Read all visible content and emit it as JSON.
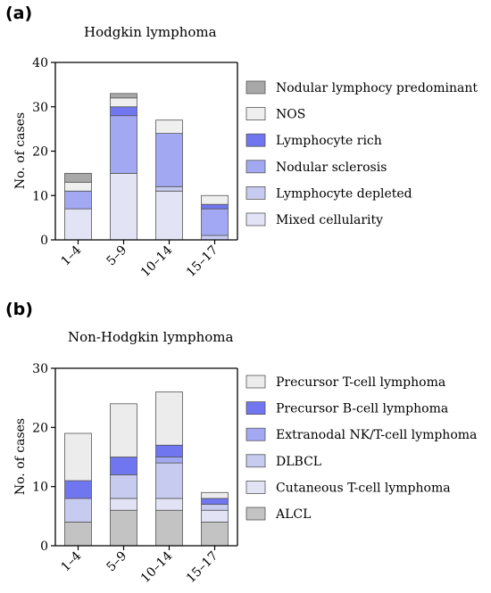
{
  "chart_data": [
    {
      "panel": "(a)",
      "type": "bar",
      "stacked": true,
      "title": "Hodgkin lymphoma",
      "xlabel": "",
      "ylabel": "No. of cases",
      "categories": [
        "1–4",
        "5–9",
        "10–14",
        "15–17"
      ],
      "ylim": [
        0,
        40
      ],
      "yticks": [
        0,
        10,
        20,
        30,
        40
      ],
      "grid": false,
      "legend_position": "right",
      "series": [
        {
          "name": "Mixed cellularity",
          "color": "#e2e4f6",
          "values": [
            7,
            15,
            11,
            0
          ]
        },
        {
          "name": "Lymphocyte depleted",
          "color": "#c7cbf0",
          "values": [
            0,
            0,
            1,
            1
          ]
        },
        {
          "name": "Nodular sclerosis",
          "color": "#a2a8f2",
          "values": [
            4,
            13,
            12,
            6
          ]
        },
        {
          "name": "Lymphocyte rich",
          "color": "#7076ef",
          "values": [
            0,
            2,
            0,
            1
          ]
        },
        {
          "name": "NOS",
          "color": "#efefef",
          "values": [
            2,
            2,
            3,
            2
          ]
        },
        {
          "name": "Nodular lymphocy predominant",
          "color": "#a8a8a8",
          "values": [
            2,
            1,
            0,
            0
          ]
        }
      ]
    },
    {
      "panel": "(b)",
      "type": "bar",
      "stacked": true,
      "title": "Non-Hodgkin lymphoma",
      "xlabel": "",
      "ylabel": "No. of cases",
      "categories": [
        "1–4",
        "5–9",
        "10–14",
        "15–17"
      ],
      "ylim": [
        0,
        30
      ],
      "yticks": [
        0,
        10,
        20,
        30
      ],
      "grid": false,
      "legend_position": "right",
      "series": [
        {
          "name": "ALCL",
          "color": "#c3c3c3",
          "values": [
            4,
            6,
            6,
            4
          ]
        },
        {
          "name": "Cutaneous T-cell lymphoma",
          "color": "#e2e4f6",
          "values": [
            0,
            2,
            2,
            2
          ]
        },
        {
          "name": "DLBCL",
          "color": "#c7cbf0",
          "values": [
            4,
            4,
            6,
            1
          ]
        },
        {
          "name": "Extranodal NK/T-cell lymphoma",
          "color": "#a2a8f2",
          "values": [
            0,
            0,
            1,
            0
          ]
        },
        {
          "name": "Precursor B-cell lymphoma",
          "color": "#7076ef",
          "values": [
            3,
            3,
            2,
            1
          ]
        },
        {
          "name": "Precursor T-cell lymphoma",
          "color": "#ececec",
          "values": [
            8,
            9,
            9,
            1
          ]
        }
      ]
    }
  ]
}
